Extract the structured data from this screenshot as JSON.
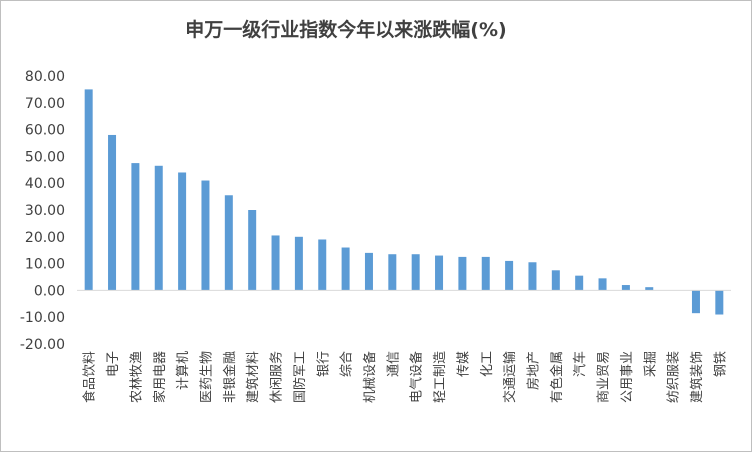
{
  "chart_data": {
    "type": "bar",
    "title": "申万一级行业指数今年以来涨跌幅(%)",
    "xlabel": "",
    "ylabel": "",
    "ylim": [
      -20,
      80
    ],
    "yticks": [
      "80.00",
      "70.00",
      "60.00",
      "50.00",
      "40.00",
      "30.00",
      "20.00",
      "10.00",
      "0.00",
      "-10.00",
      "-20.00"
    ],
    "grid": false,
    "legend": "none",
    "bar_color": "#5b9bd5",
    "categories": [
      "食品饮料",
      "电子",
      "农林牧渔",
      "家用电器",
      "计算机",
      "医药生物",
      "非银金融",
      "建筑材料",
      "休闲服务",
      "国防军工",
      "银行",
      "综合",
      "机械设备",
      "通信",
      "电气设备",
      "轻工制造",
      "传媒",
      "化工",
      "交通运输",
      "房地产",
      "有色金属",
      "汽车",
      "商业贸易",
      "公用事业",
      "采掘",
      "纺织服装",
      "建筑装饰",
      "钢铁"
    ],
    "values": [
      75.0,
      58.0,
      47.5,
      46.5,
      44.0,
      41.0,
      35.5,
      30.0,
      20.5,
      20.0,
      19.0,
      16.0,
      14.0,
      13.5,
      13.5,
      13.0,
      12.5,
      12.5,
      11.0,
      10.5,
      7.5,
      5.5,
      4.5,
      2.0,
      1.2,
      0.0,
      -8.5,
      -9.0
    ]
  }
}
